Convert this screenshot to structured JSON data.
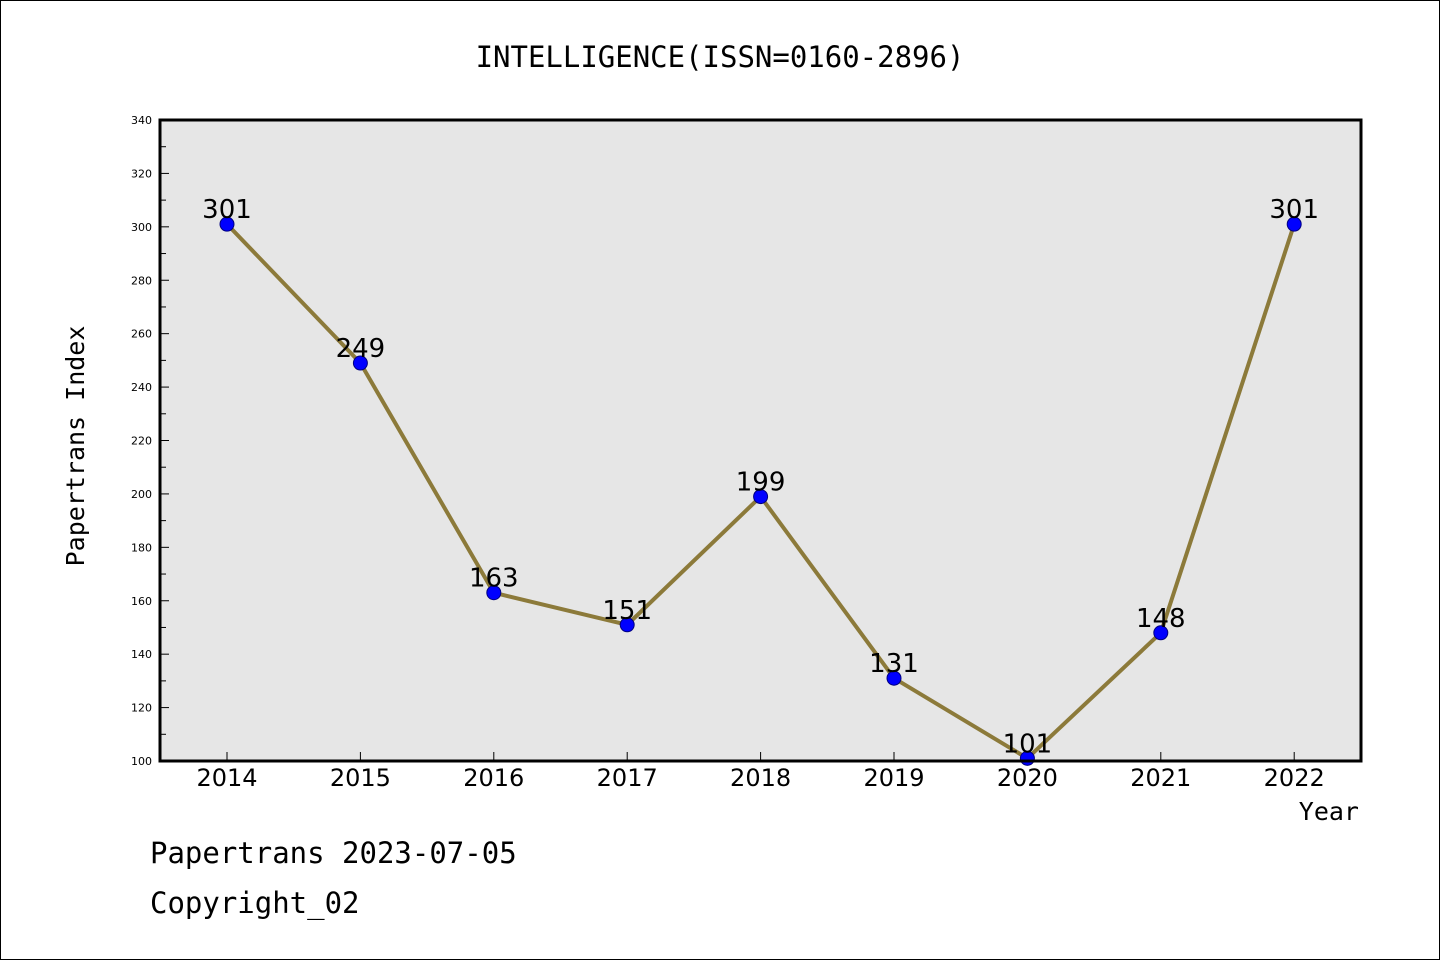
{
  "footer": {
    "line1": "Papertrans 2023-07-05",
    "line2": "Copyright_02"
  },
  "chart_data": {
    "type": "line",
    "title": "INTELLIGENCE(ISSN=0160-2896)",
    "xlabel": "Year",
    "ylabel": "Papertrans Index",
    "categories": [
      "2014",
      "2015",
      "2016",
      "2017",
      "2018",
      "2019",
      "2020",
      "2021",
      "2022"
    ],
    "series": [
      {
        "values": [
          301,
          249,
          163,
          151,
          199,
          131,
          101,
          148,
          301
        ]
      }
    ],
    "data_labels": [
      "301",
      "249",
      "163",
      "151",
      "199",
      "131",
      "101",
      "148",
      "301"
    ],
    "y_ticks": [
      "100",
      "120",
      "140",
      "160",
      "180",
      "200",
      "220",
      "240",
      "260",
      "280",
      "300",
      "320",
      "340"
    ],
    "ylim": [
      100,
      340
    ],
    "grid": false,
    "legend": "none",
    "colors": {
      "plot_background": "#e6e6e6",
      "line": "#8c7a3a",
      "marker_fill": "#0000ff",
      "marker_edge": "#000080"
    }
  }
}
